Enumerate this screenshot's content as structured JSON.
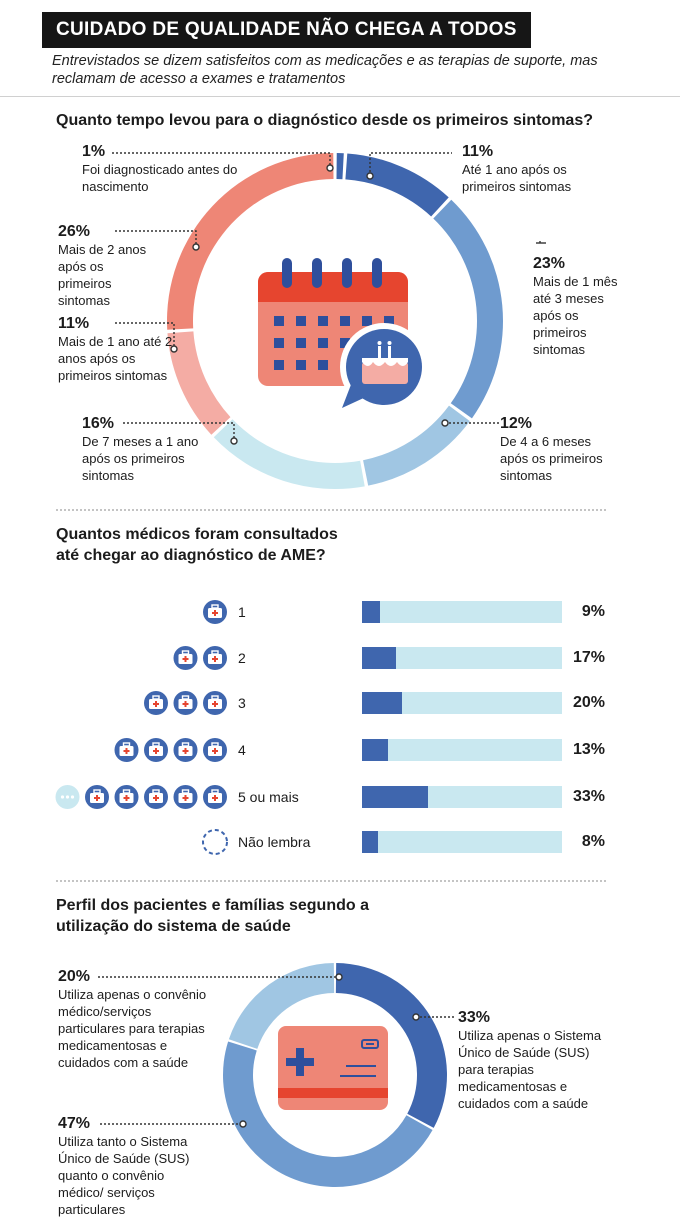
{
  "header": {
    "title": "CUIDADO DE QUALIDADE NÃO CHEGA A TODOS",
    "subtitle": "Entrevistados se dizem satisfeitos com as medicações e as terapias de suporte, mas reclamam de acesso a exames e tratamentos"
  },
  "colors": {
    "dark_blue": "#3f66ae",
    "mid_blue": "#6f9bcf",
    "light_blue": "#a0c6e3",
    "pale_blue": "#c9e8f0",
    "salmon": "#ee8676",
    "pale_salmon": "#f4aca4",
    "red": "#e6452f",
    "black": "#161616"
  },
  "chart_data": [
    {
      "type": "pie",
      "title": "Quanto tempo levou para o diagnóstico desde os primeiros sintomas?",
      "slices": [
        {
          "pct_label": "1%",
          "value": 1,
          "label": "Foi diagnosticado antes do nascimento",
          "color": "#3f66ae"
        },
        {
          "pct_label": "11%",
          "value": 11,
          "label": "Até 1 ano após os primeiros sintomas",
          "color": "#3f66ae"
        },
        {
          "pct_label": "23%",
          "value": 23,
          "label": "Mais de 1 mês até 3 meses após os primeiros sintomas",
          "color": "#6f9bcf"
        },
        {
          "pct_label": "12%",
          "value": 12,
          "label": "De 4 a 6 meses após os primeiros sintomas",
          "color": "#a0c6e3"
        },
        {
          "pct_label": "16%",
          "value": 16,
          "label": "De 7 meses a 1 ano após os primeiros sintomas",
          "color": "#c9e8f0"
        },
        {
          "pct_label": "11%",
          "value": 11,
          "label": "Mais de 1 ano até 2 anos após os primeiros sintomas",
          "color": "#f4aca4"
        },
        {
          "pct_label": "26%",
          "value": 26,
          "label": "Mais de 2 anos após os primeiros sintomas",
          "color": "#ee8676"
        }
      ]
    },
    {
      "type": "bar",
      "title": "Quantos médicos foram consultados até chegar ao diagnóstico de AME?",
      "categories": [
        "1",
        "2",
        "3",
        "4",
        "5 ou mais",
        "Não lembra"
      ],
      "values": [
        9,
        17,
        20,
        13,
        33,
        8
      ],
      "value_labels": [
        "9%",
        "17%",
        "20%",
        "13%",
        "33%",
        "8%"
      ],
      "icon_counts": [
        1,
        2,
        3,
        4,
        5,
        0
      ],
      "ylim": [
        0,
        100
      ]
    },
    {
      "type": "pie",
      "title": "Perfil dos pacientes e famílias segundo a utilização do sistema de saúde",
      "slices": [
        {
          "pct_label": "33%",
          "value": 33,
          "label": "Utiliza apenas o Sistema Único de Saúde (SUS) para terapias medicamentosas e cuidados com a saúde",
          "color": "#3f66ae"
        },
        {
          "pct_label": "47%",
          "value": 47,
          "label": "Utiliza tanto o Sistema Único de Saúde (SUS) quanto o convênio médico/ serviços particulares",
          "color": "#6f9bcf"
        },
        {
          "pct_label": "20%",
          "value": 20,
          "label": "Utiliza apenas o convênio médico/serviços particulares para terapias medicamentosas e cuidados com a saúde",
          "color": "#a0c6e3"
        }
      ]
    }
  ],
  "icons": [
    "calendar-icon",
    "birthday-cake-icon",
    "doctor-bag-icon",
    "health-card-icon"
  ]
}
